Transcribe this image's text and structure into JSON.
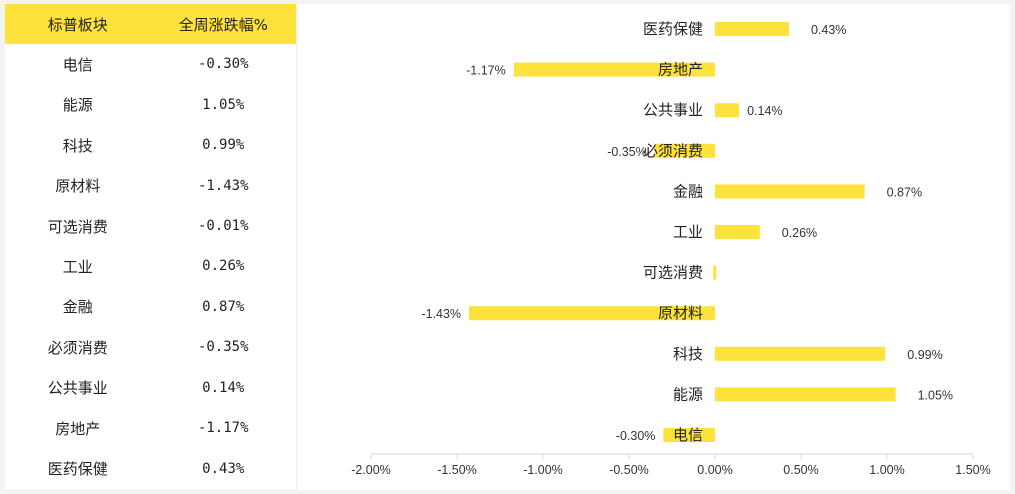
{
  "table": {
    "headers": [
      "标普板块",
      "全周涨跌幅%"
    ],
    "rows": [
      {
        "sector": "电信",
        "change": "-0.30%"
      },
      {
        "sector": "能源",
        "change": "1.05%"
      },
      {
        "sector": "科技",
        "change": "0.99%"
      },
      {
        "sector": "原材料",
        "change": "-1.43%"
      },
      {
        "sector": "可选消费",
        "change": "-0.01%"
      },
      {
        "sector": "工业",
        "change": "0.26%"
      },
      {
        "sector": "金融",
        "change": "0.87%"
      },
      {
        "sector": "必须消费",
        "change": "-0.35%"
      },
      {
        "sector": "公共事业",
        "change": "0.14%"
      },
      {
        "sector": "房地产",
        "change": "-1.17%"
      },
      {
        "sector": "医药保健",
        "change": "0.43%"
      }
    ]
  },
  "colors": {
    "bar": "#fde23c",
    "header_bg": "#fde23c",
    "axis": "#d9d9d9"
  },
  "chart_data": {
    "type": "bar",
    "orientation": "horizontal",
    "categories": [
      "医药保健",
      "房地产",
      "公共事业",
      "必须消费",
      "金融",
      "工业",
      "可选消费",
      "原材料",
      "科技",
      "能源",
      "电信"
    ],
    "values": [
      0.43,
      -1.17,
      0.14,
      -0.35,
      0.87,
      0.26,
      -0.01,
      -1.43,
      0.99,
      1.05,
      -0.3
    ],
    "data_labels": [
      "0.43%",
      "-1.17%",
      "0.14%",
      "-0.35%",
      "0.87%",
      "0.26%",
      "",
      "-1.43%",
      "0.99%",
      "1.05%",
      "-0.30%"
    ],
    "xlim": [
      -2.0,
      1.5
    ],
    "x_ticks": [
      -2.0,
      -1.5,
      -1.0,
      -0.5,
      0.0,
      0.5,
      1.0,
      1.5
    ],
    "x_tick_labels": [
      "-2.00%",
      "-1.50%",
      "-1.00%",
      "-0.50%",
      "0.00%",
      "0.50%",
      "1.00%",
      "1.50%"
    ],
    "title": "",
    "xlabel": "",
    "ylabel": "",
    "grid": false,
    "legend": "none"
  }
}
